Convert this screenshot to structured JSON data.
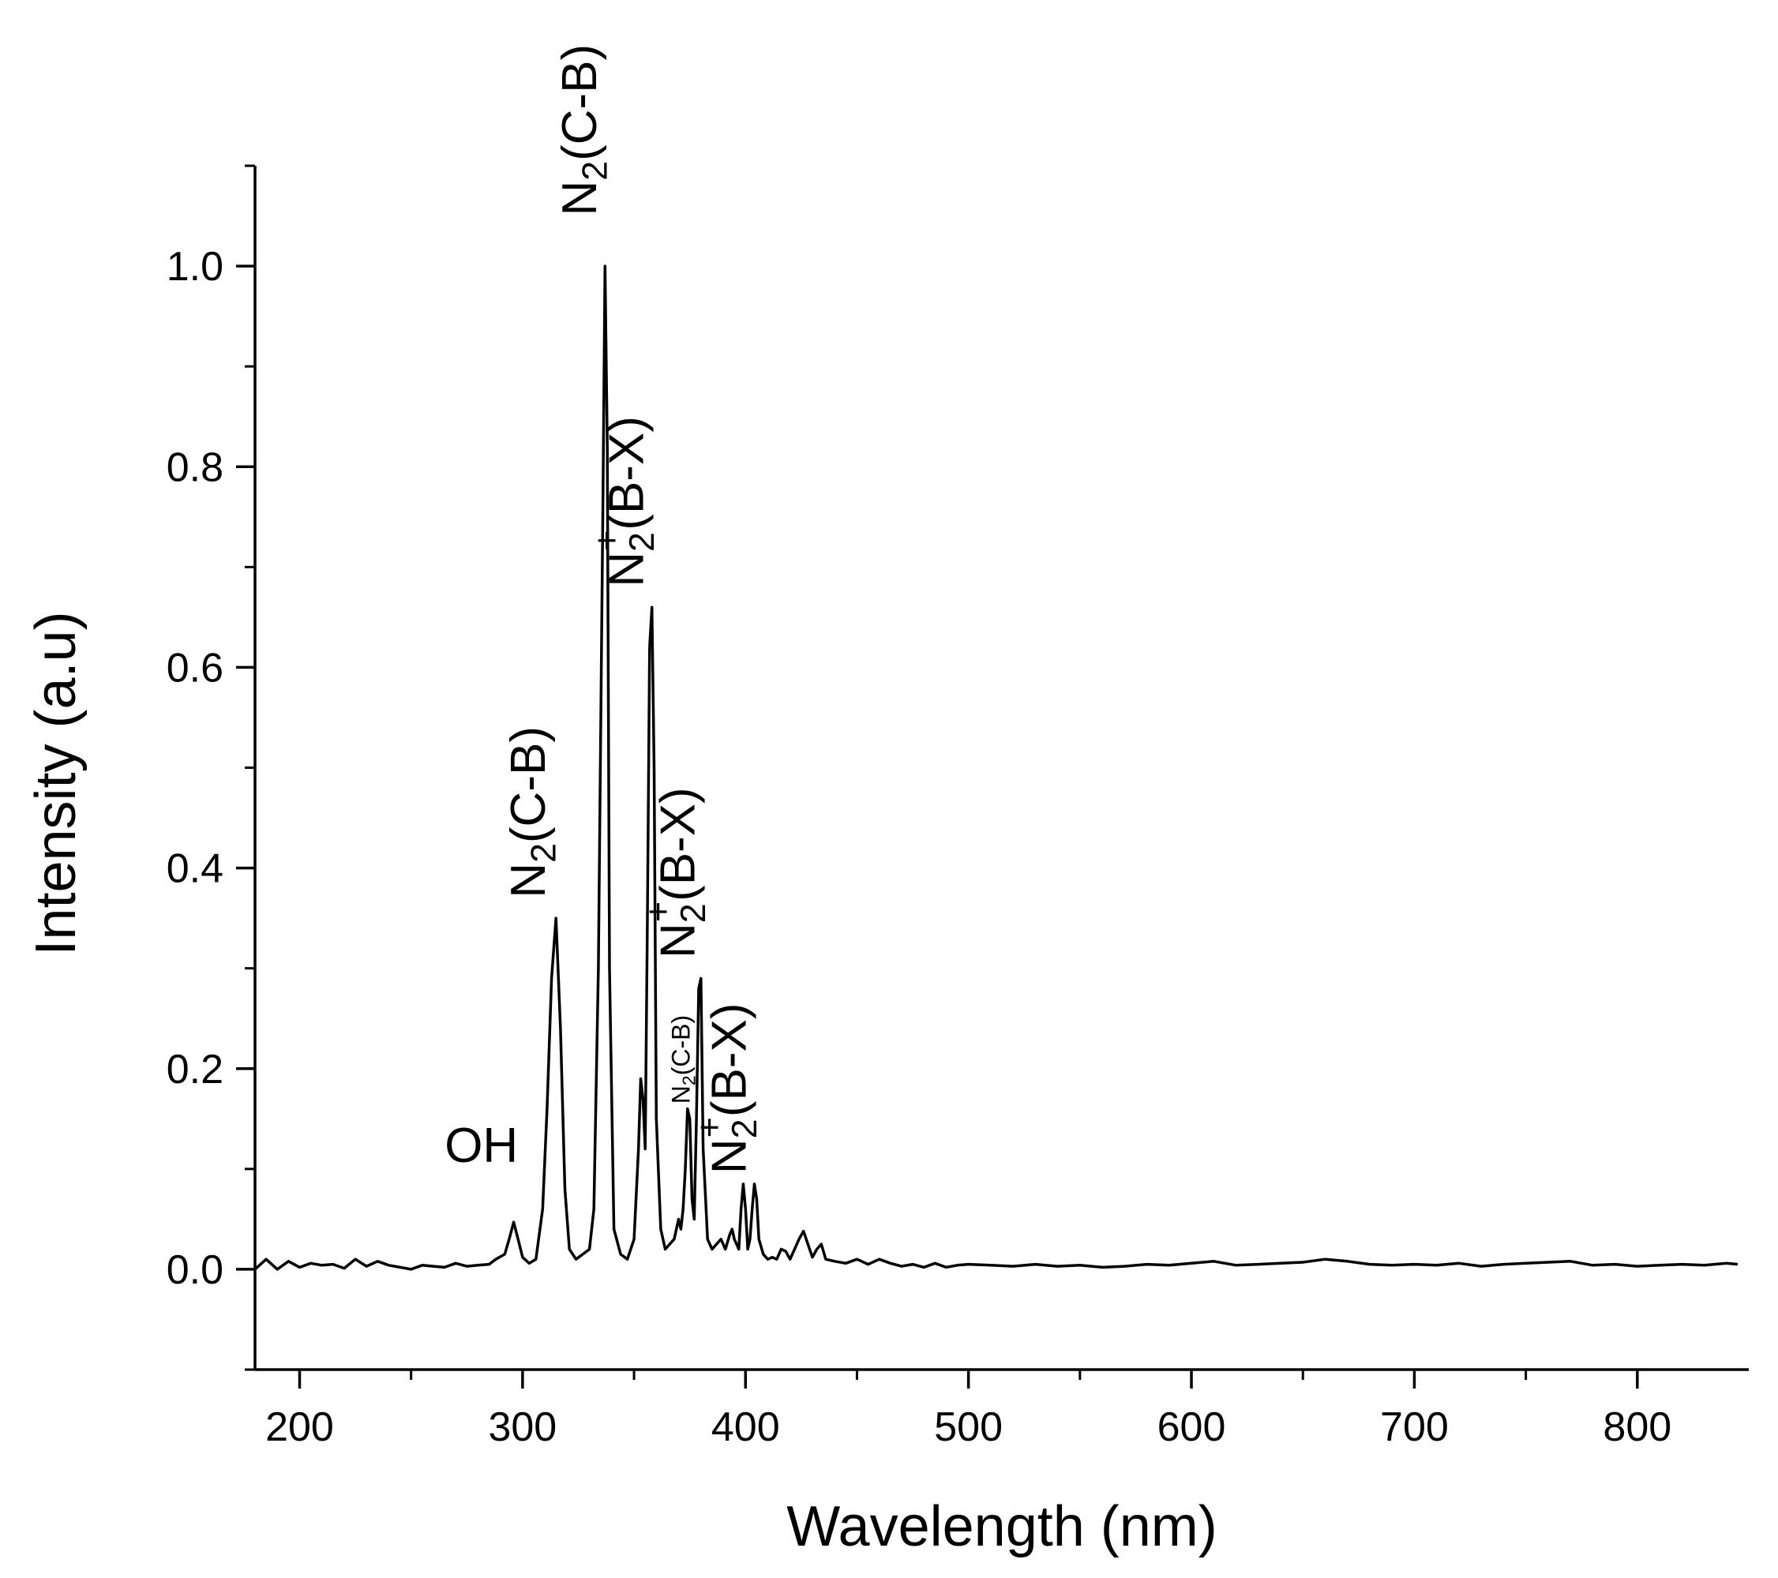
{
  "chart_data": {
    "type": "line",
    "xlabel": "Wavelength (nm)",
    "ylabel": "Intensity (a.u)",
    "xlim": [
      180,
      850
    ],
    "ylim": [
      -0.1,
      1.1
    ],
    "xticks": [
      200,
      300,
      400,
      500,
      600,
      700,
      800
    ],
    "xtick_labels": [
      "200",
      "300",
      "400",
      "500",
      "600",
      "700",
      "800"
    ],
    "xminor": [
      250,
      350,
      450,
      550,
      650,
      750
    ],
    "yticks": [
      0.0,
      0.2,
      0.4,
      0.6,
      0.8,
      1.0
    ],
    "ytick_labels": [
      "0.0",
      "0.2",
      "0.4",
      "0.6",
      "0.8",
      "1.0"
    ],
    "yminor": [
      -0.1,
      0.1,
      0.3,
      0.5,
      0.7,
      0.9,
      1.1
    ],
    "grid": false,
    "color": "#000000",
    "series": [
      {
        "x": [
          180,
          185,
          190,
          195,
          200,
          205,
          210,
          215,
          220,
          225,
          230,
          235,
          240,
          245,
          250,
          255,
          260,
          265,
          270,
          275,
          280,
          285,
          288,
          292,
          294,
          296,
          298,
          300,
          303,
          306,
          309,
          311,
          313,
          315,
          317,
          319,
          321,
          324,
          327,
          330,
          332,
          334,
          336,
          337,
          338,
          339,
          341,
          344,
          347,
          350,
          352,
          353,
          354,
          355,
          356,
          357,
          358,
          359,
          360,
          362,
          364,
          366,
          368,
          370,
          371,
          372,
          373,
          374,
          375,
          376,
          377,
          378,
          379,
          380,
          381,
          383,
          385,
          387,
          389,
          391,
          393,
          394,
          395,
          397,
          398,
          399,
          400,
          401,
          402,
          403,
          404,
          405,
          406,
          408,
          410,
          412,
          414,
          416,
          418,
          420,
          422,
          424,
          426,
          428,
          430,
          432,
          434,
          436,
          440,
          445,
          450,
          455,
          460,
          465,
          470,
          475,
          480,
          485,
          490,
          495,
          500,
          510,
          520,
          530,
          540,
          550,
          560,
          570,
          580,
          590,
          600,
          610,
          620,
          630,
          640,
          650,
          660,
          670,
          680,
          690,
          700,
          710,
          720,
          730,
          740,
          750,
          760,
          770,
          780,
          790,
          800,
          810,
          820,
          830,
          840,
          845
        ],
        "y": [
          0.0,
          0.01,
          0.0,
          0.008,
          0.002,
          0.006,
          0.004,
          0.005,
          0.001,
          0.01,
          0.003,
          0.008,
          0.004,
          0.002,
          0.0,
          0.004,
          0.003,
          0.002,
          0.006,
          0.003,
          0.004,
          0.005,
          0.01,
          0.015,
          0.03,
          0.047,
          0.03,
          0.012,
          0.006,
          0.01,
          0.06,
          0.16,
          0.29,
          0.35,
          0.24,
          0.08,
          0.02,
          0.01,
          0.015,
          0.02,
          0.06,
          0.3,
          0.75,
          1.0,
          0.82,
          0.3,
          0.04,
          0.015,
          0.01,
          0.03,
          0.12,
          0.19,
          0.17,
          0.12,
          0.35,
          0.62,
          0.66,
          0.5,
          0.15,
          0.04,
          0.02,
          0.025,
          0.03,
          0.05,
          0.04,
          0.06,
          0.1,
          0.16,
          0.15,
          0.07,
          0.05,
          0.15,
          0.28,
          0.29,
          0.12,
          0.03,
          0.02,
          0.025,
          0.03,
          0.02,
          0.035,
          0.04,
          0.03,
          0.02,
          0.06,
          0.085,
          0.06,
          0.02,
          0.03,
          0.06,
          0.085,
          0.07,
          0.03,
          0.015,
          0.01,
          0.012,
          0.01,
          0.02,
          0.018,
          0.01,
          0.02,
          0.03,
          0.038,
          0.025,
          0.012,
          0.02,
          0.025,
          0.01,
          0.008,
          0.006,
          0.01,
          0.005,
          0.01,
          0.006,
          0.003,
          0.005,
          0.002,
          0.006,
          0.002,
          0.004,
          0.005,
          0.004,
          0.003,
          0.005,
          0.003,
          0.004,
          0.002,
          0.003,
          0.005,
          0.004,
          0.006,
          0.008,
          0.004,
          0.005,
          0.006,
          0.007,
          0.01,
          0.008,
          0.005,
          0.004,
          0.005,
          0.004,
          0.006,
          0.003,
          0.005,
          0.006,
          0.007,
          0.008,
          0.004,
          0.005,
          0.003,
          0.004,
          0.005,
          0.004,
          0.006,
          0.005
        ]
      }
    ],
    "annotations": [
      {
        "id": "oh",
        "base": "OH",
        "sub": "",
        "sup": "",
        "rest": "",
        "x": 298,
        "y": 0.107,
        "rotate": false
      },
      {
        "id": "n2-cb-315",
        "base": "N",
        "sub": "2",
        "sup": "",
        "rest": "(C-B)",
        "x": 310,
        "y": 0.37,
        "rotate": true
      },
      {
        "id": "n2-cb-337",
        "base": "N",
        "sub": "2",
        "sup": "",
        "rest": "(C-B)",
        "x": 333,
        "y": 1.05,
        "rotate": true
      },
      {
        "id": "n2p-bx-357",
        "base": "N",
        "sub": "2",
        "sup": "+",
        "rest": "(B-X)",
        "x": 354,
        "y": 0.68,
        "rotate": true
      },
      {
        "id": "n2-cb-375",
        "base": "N",
        "sub": "2",
        "sup": "",
        "rest": "(C-B)",
        "x": 375,
        "y": 0.165,
        "rotate": true,
        "small": true
      },
      {
        "id": "n2p-bx-380",
        "base": "N",
        "sub": "2",
        "sup": "+",
        "rest": "(B-X)",
        "x": 377,
        "y": 0.31,
        "rotate": true
      },
      {
        "id": "n2p-bx-404",
        "base": "N",
        "sub": "2",
        "sup": "+",
        "rest": "(B-X)",
        "x": 400,
        "y": 0.095,
        "rotate": true
      }
    ]
  }
}
